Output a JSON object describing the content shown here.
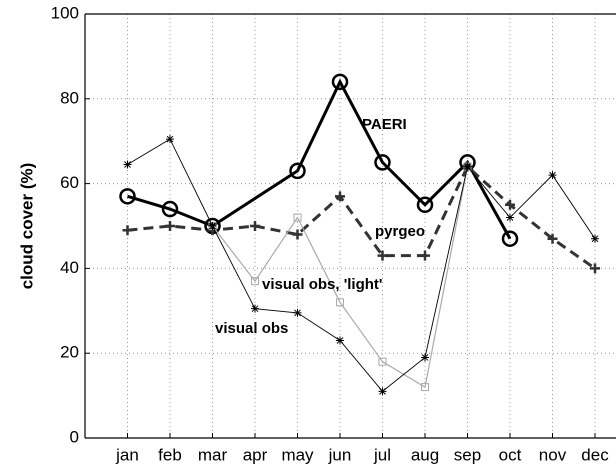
{
  "chart_data": {
    "type": "line",
    "y_label": "cloud cover (%)",
    "categories": [
      "jan",
      "feb",
      "mar",
      "apr",
      "may",
      "jun",
      "jul",
      "aug",
      "sep",
      "oct",
      "nov",
      "dec"
    ],
    "ylim": [
      0,
      100
    ],
    "yticks": [
      0,
      20,
      40,
      60,
      80,
      100
    ],
    "grid": true,
    "series": [
      {
        "name": "PAERI",
        "color": "#000000",
        "style": "solid",
        "width": 3,
        "marker": "circle",
        "x": [
          "jan",
          "feb",
          "mar",
          "may",
          "jun",
          "jul",
          "aug",
          "sep",
          "oct"
        ],
        "values": [
          57,
          54,
          50,
          63,
          84,
          65,
          55,
          65,
          47
        ]
      },
      {
        "name": "pyrgeo",
        "color": "#333333",
        "style": "dashed",
        "width": 3,
        "marker": "plus",
        "x": [
          "jan",
          "feb",
          "mar",
          "apr",
          "may",
          "jun",
          "jul",
          "aug",
          "sep",
          "oct",
          "nov",
          "dec"
        ],
        "values": [
          49,
          50,
          49,
          50,
          48,
          57,
          43,
          43,
          64,
          55,
          47,
          40
        ]
      },
      {
        "name": "visual obs, 'light'",
        "color": "#aaaaaa",
        "style": "solid",
        "width": 1.2,
        "marker": "square",
        "x": [
          "mar",
          "apr",
          "may",
          "jun",
          "jul",
          "aug",
          "sep"
        ],
        "values": [
          50,
          37,
          52,
          32,
          18,
          12,
          64
        ]
      },
      {
        "name": "visual obs",
        "color": "#000000",
        "style": "solid",
        "width": 0.9,
        "marker": "asterisk",
        "x": [
          "jan",
          "feb",
          "mar",
          "apr",
          "may",
          "jun",
          "jul",
          "aug",
          "sep",
          "oct",
          "nov",
          "dec"
        ],
        "values": [
          64.5,
          70.5,
          50,
          30.5,
          29.5,
          23,
          11,
          19,
          64,
          52,
          62,
          47
        ]
      }
    ]
  }
}
